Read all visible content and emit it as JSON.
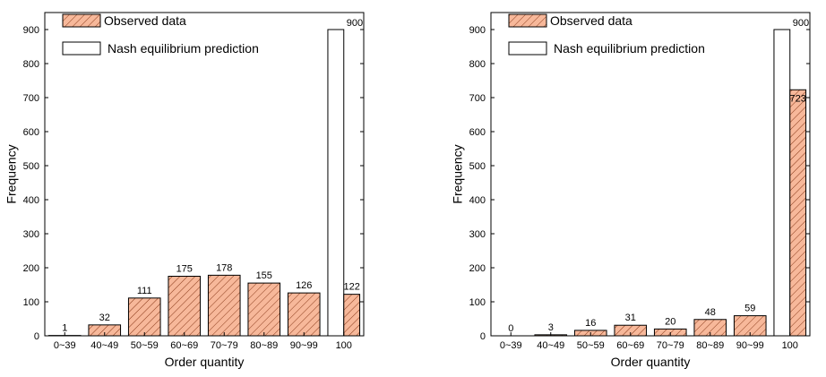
{
  "colors": {
    "observed_fill": "#f7b89a",
    "observed_hatch": "#8a3a1a",
    "nash_fill": "#ffffff",
    "outline": "#000000"
  },
  "chart_data": [
    {
      "type": "bar",
      "categories": [
        "0~39",
        "40~49",
        "50~59",
        "60~69",
        "70~79",
        "80~89",
        "90~99",
        "100"
      ],
      "series": [
        {
          "name": "Observed data",
          "values": [
            1,
            32,
            111,
            175,
            178,
            155,
            126,
            122
          ]
        },
        {
          "name": "Nash equilibrium prediction",
          "values": [
            0,
            0,
            0,
            0,
            0,
            0,
            0,
            900
          ]
        }
      ],
      "data_labels": [
        "1",
        "32",
        "111",
        "175",
        "178",
        "155",
        "126",
        "122"
      ],
      "nash_label": "900",
      "xlabel": "Order quantity",
      "ylabel": "Frequency",
      "ylim": [
        0,
        950
      ],
      "yticks": [
        0,
        100,
        200,
        300,
        400,
        500,
        600,
        700,
        800,
        900
      ],
      "legend": "top-left",
      "grid": false
    },
    {
      "type": "bar",
      "categories": [
        "0~39",
        "40~49",
        "50~59",
        "60~69",
        "70~79",
        "80~89",
        "90~99",
        "100"
      ],
      "series": [
        {
          "name": "Observed data",
          "values": [
            0,
            3,
            16,
            31,
            20,
            48,
            59,
            723
          ]
        },
        {
          "name": "Nash equilibrium prediction",
          "values": [
            0,
            0,
            0,
            0,
            0,
            0,
            0,
            900
          ]
        }
      ],
      "data_labels": [
        "0",
        "3",
        "16",
        "31",
        "20",
        "48",
        "59",
        "723"
      ],
      "nash_label": "900",
      "xlabel": "Order quantity",
      "ylabel": "Frequency",
      "ylim": [
        0,
        950
      ],
      "yticks": [
        0,
        100,
        200,
        300,
        400,
        500,
        600,
        700,
        800,
        900
      ],
      "legend": "top-left",
      "grid": false
    }
  ]
}
